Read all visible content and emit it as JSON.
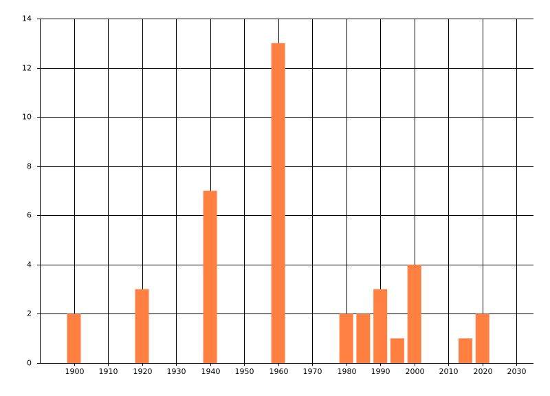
{
  "chart_data": {
    "type": "bar",
    "x": [
      1900,
      1920,
      1940,
      1960,
      1980,
      1985,
      1990,
      1995,
      2000,
      2015,
      2020
    ],
    "values": [
      2,
      3,
      7,
      13,
      2,
      2,
      3,
      1,
      4,
      1,
      2
    ],
    "color": "#ff8040",
    "xlim": [
      1890,
      2035
    ],
    "xticks": [
      1900,
      1910,
      1920,
      1930,
      1940,
      1950,
      1960,
      1970,
      1980,
      1990,
      2000,
      2010,
      2020,
      2030
    ],
    "ylim": [
      0,
      14
    ],
    "yticks": [
      0,
      2,
      4,
      6,
      8,
      10,
      12,
      14
    ],
    "grid": true
  }
}
